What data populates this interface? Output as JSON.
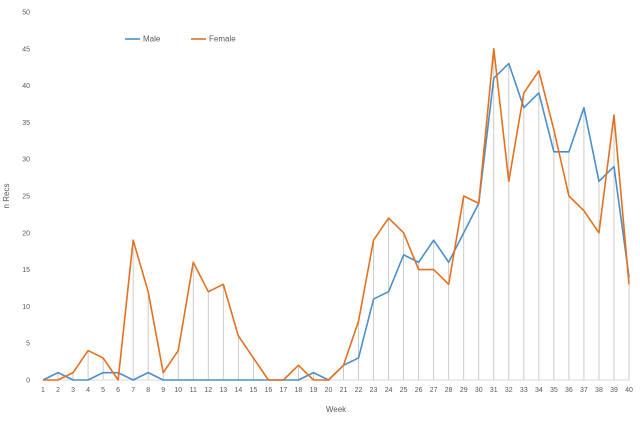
{
  "chart_data": {
    "type": "line",
    "title": "",
    "xlabel": "Week",
    "ylabel": "n Recs",
    "x": [
      1,
      2,
      3,
      4,
      5,
      6,
      7,
      8,
      9,
      10,
      11,
      12,
      13,
      14,
      15,
      16,
      17,
      18,
      19,
      20,
      21,
      22,
      23,
      24,
      25,
      26,
      27,
      28,
      29,
      30,
      31,
      32,
      33,
      34,
      35,
      36,
      37,
      38,
      39,
      40
    ],
    "ylim": [
      0,
      50
    ],
    "yticks": [
      0,
      5,
      10,
      15,
      20,
      25,
      30,
      35,
      40,
      45,
      50
    ],
    "drop_lines": true,
    "legend_position": "top-left",
    "series": [
      {
        "name": "Male",
        "color": "#4a8fcb",
        "values": [
          0,
          1,
          0,
          0,
          1,
          1,
          0,
          1,
          0,
          0,
          0,
          0,
          0,
          0,
          0,
          0,
          0,
          0,
          1,
          0,
          2,
          3,
          11,
          12,
          17,
          16,
          19,
          16,
          20,
          24,
          41,
          43,
          37,
          39,
          31,
          31,
          37,
          27,
          29,
          14
        ]
      },
      {
        "name": "Female",
        "color": "#e5701f",
        "values": [
          0,
          0,
          1,
          4,
          3,
          0,
          19,
          12,
          1,
          4,
          16,
          12,
          13,
          6,
          3,
          0,
          0,
          2,
          0,
          0,
          2,
          8,
          19,
          22,
          20,
          15,
          15,
          13,
          25,
          24,
          45,
          27,
          39,
          42,
          34,
          25,
          23,
          20,
          36,
          13
        ]
      }
    ]
  }
}
